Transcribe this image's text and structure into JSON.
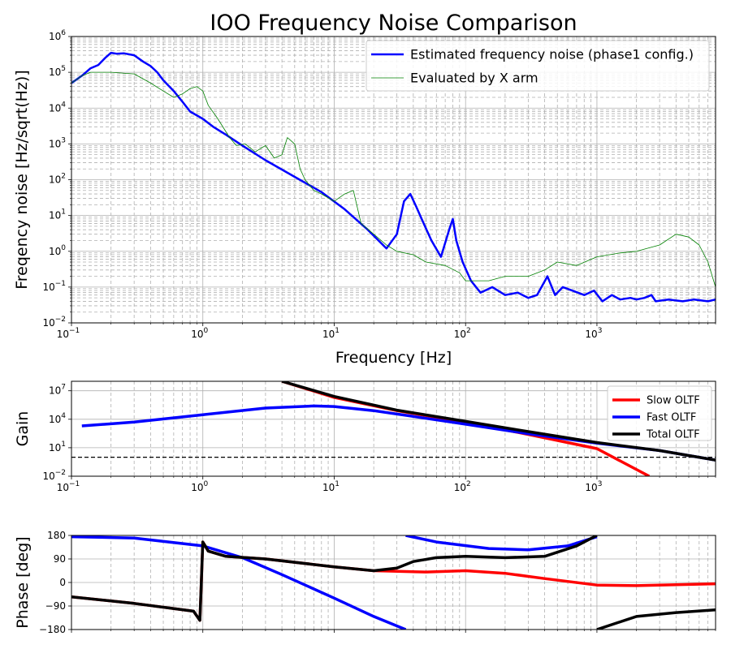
{
  "chart_data": [
    {
      "type": "line",
      "title": "IOO Frequency Noise Comparison",
      "xlabel": "Frequency [Hz]",
      "ylabel": "Freqency noise [Hz/sqrt(Hz)]",
      "xscale": "log",
      "yscale": "log",
      "xlim": [
        0.1,
        8000
      ],
      "ylim": [
        0.01,
        1000000
      ],
      "xticks": [
        {
          "v": 0.1,
          "m": "10",
          "e": "−1"
        },
        {
          "v": 1,
          "m": "10",
          "e": "0"
        },
        {
          "v": 10,
          "m": "10",
          "e": "1"
        },
        {
          "v": 100,
          "m": "10",
          "e": "2"
        },
        {
          "v": 1000,
          "m": "10",
          "e": "3"
        }
      ],
      "yticks": [
        {
          "v": 0.01,
          "m": "10",
          "e": "−2"
        },
        {
          "v": 0.1,
          "m": "10",
          "e": "−1"
        },
        {
          "v": 1,
          "m": "10",
          "e": "0"
        },
        {
          "v": 10,
          "m": "10",
          "e": "1"
        },
        {
          "v": 100,
          "m": "10",
          "e": "2"
        },
        {
          "v": 1000,
          "m": "10",
          "e": "3"
        },
        {
          "v": 10000,
          "m": "10",
          "e": "4"
        },
        {
          "v": 100000,
          "m": "10",
          "e": "5"
        },
        {
          "v": 1000000,
          "m": "10",
          "e": "6"
        }
      ],
      "grid": true,
      "legend": "top-right",
      "series": [
        {
          "name": "Estimated frequency noise (phase1 config.)",
          "color": "#0000ff",
          "points": [
            [
              0.1,
              50000
            ],
            [
              0.12,
              80000
            ],
            [
              0.14,
              130000
            ],
            [
              0.16,
              160000
            ],
            [
              0.18,
              250000
            ],
            [
              0.2,
              350000
            ],
            [
              0.22,
              330000
            ],
            [
              0.25,
              340000
            ],
            [
              0.3,
              300000
            ],
            [
              0.35,
              200000
            ],
            [
              0.4,
              150000
            ],
            [
              0.45,
              100000
            ],
            [
              0.5,
              60000
            ],
            [
              0.6,
              30000
            ],
            [
              0.7,
              15000
            ],
            [
              0.8,
              8000
            ],
            [
              1,
              5000
            ],
            [
              1.2,
              3000
            ],
            [
              1.5,
              1800
            ],
            [
              2,
              900
            ],
            [
              3,
              350
            ],
            [
              5,
              120
            ],
            [
              8,
              45
            ],
            [
              12,
              15
            ],
            [
              18,
              4
            ],
            [
              25,
              1.2
            ],
            [
              30,
              3
            ],
            [
              34,
              25
            ],
            [
              38,
              40
            ],
            [
              42,
              18
            ],
            [
              48,
              6
            ],
            [
              55,
              2
            ],
            [
              65,
              0.7
            ],
            [
              75,
              4
            ],
            [
              80,
              8
            ],
            [
              85,
              2
            ],
            [
              95,
              0.5
            ],
            [
              110,
              0.15
            ],
            [
              130,
              0.07
            ],
            [
              160,
              0.1
            ],
            [
              200,
              0.06
            ],
            [
              250,
              0.07
            ],
            [
              300,
              0.05
            ],
            [
              350,
              0.06
            ],
            [
              420,
              0.2
            ],
            [
              480,
              0.06
            ],
            [
              550,
              0.1
            ],
            [
              650,
              0.08
            ],
            [
              800,
              0.06
            ],
            [
              950,
              0.08
            ],
            [
              1100,
              0.04
            ],
            [
              1300,
              0.06
            ],
            [
              1500,
              0.045
            ],
            [
              1800,
              0.05
            ],
            [
              2000,
              0.045
            ],
            [
              2300,
              0.05
            ],
            [
              2600,
              0.06
            ],
            [
              2800,
              0.04
            ],
            [
              3500,
              0.045
            ],
            [
              4500,
              0.04
            ],
            [
              5500,
              0.045
            ],
            [
              7000,
              0.04
            ],
            [
              8000,
              0.045
            ]
          ]
        },
        {
          "name": "Evaluated by X arm",
          "color": "#008000",
          "points": [
            [
              0.1,
              50000
            ],
            [
              0.12,
              80000
            ],
            [
              0.14,
              100000
            ],
            [
              0.2,
              100000
            ],
            [
              0.3,
              90000
            ],
            [
              0.4,
              50000
            ],
            [
              0.5,
              30000
            ],
            [
              0.6,
              20000
            ],
            [
              0.7,
              25000
            ],
            [
              0.8,
              35000
            ],
            [
              0.9,
              40000
            ],
            [
              1,
              30000
            ],
            [
              1.1,
              12000
            ],
            [
              1.3,
              5000
            ],
            [
              1.6,
              1500
            ],
            [
              1.8,
              900
            ],
            [
              2.1,
              1000
            ],
            [
              2.5,
              600
            ],
            [
              3,
              900
            ],
            [
              3.5,
              400
            ],
            [
              4,
              500
            ],
            [
              4.4,
              1500
            ],
            [
              5,
              1000
            ],
            [
              5.5,
              200
            ],
            [
              6,
              100
            ],
            [
              7,
              50
            ],
            [
              8,
              40
            ],
            [
              10,
              25
            ],
            [
              12,
              40
            ],
            [
              14,
              50
            ],
            [
              16,
              6
            ],
            [
              20,
              3
            ],
            [
              25,
              1.5
            ],
            [
              30,
              1
            ],
            [
              40,
              0.8
            ],
            [
              50,
              0.5
            ],
            [
              70,
              0.4
            ],
            [
              90,
              0.25
            ],
            [
              100,
              0.15
            ],
            [
              150,
              0.15
            ],
            [
              200,
              0.2
            ],
            [
              300,
              0.2
            ],
            [
              400,
              0.3
            ],
            [
              500,
              0.5
            ],
            [
              700,
              0.4
            ],
            [
              1000,
              0.7
            ],
            [
              1500,
              0.9
            ],
            [
              2000,
              1
            ],
            [
              3000,
              1.5
            ],
            [
              4000,
              3
            ],
            [
              5000,
              2.5
            ],
            [
              6000,
              1.5
            ],
            [
              7000,
              0.5
            ],
            [
              8000,
              0.1
            ]
          ]
        }
      ]
    },
    {
      "type": "line",
      "title": "",
      "ylabel": "Gain",
      "xscale": "log",
      "yscale": "log",
      "xlim": [
        0.1,
        8000
      ],
      "ylim": [
        0.01,
        100000000
      ],
      "xticks": [
        {
          "v": 0.1,
          "m": "10",
          "e": "−1"
        },
        {
          "v": 1,
          "m": "10",
          "e": "0"
        },
        {
          "v": 10,
          "m": "10",
          "e": "1"
        },
        {
          "v": 100,
          "m": "10",
          "e": "2"
        },
        {
          "v": 1000,
          "m": "10",
          "e": "3"
        }
      ],
      "yticks": [
        {
          "v": 0.01,
          "m": "10",
          "e": "−2"
        },
        {
          "v": 10,
          "m": "10",
          "e": "1"
        },
        {
          "v": 10000,
          "m": "10",
          "e": "4"
        },
        {
          "v": 10000000,
          "m": "10",
          "e": "7"
        }
      ],
      "reference_line": 1,
      "grid": true,
      "legend": "top-right",
      "series": [
        {
          "name": "Slow OLTF",
          "color": "#ff0000",
          "points": [
            [
              4,
              100000000
            ],
            [
              10,
              2000000
            ],
            [
              30,
              80000
            ],
            [
              100,
              5000
            ],
            [
              300,
              250
            ],
            [
              1000,
              8
            ],
            [
              2500,
              0.01
            ]
          ]
        },
        {
          "name": "Fast OLTF",
          "color": "#0000ff",
          "points": [
            [
              0.12,
              2000
            ],
            [
              0.3,
              5000
            ],
            [
              1,
              30000
            ],
            [
              3,
              150000
            ],
            [
              7,
              250000
            ],
            [
              10,
              220000
            ],
            [
              20,
              80000
            ],
            [
              40,
              20000
            ],
            [
              100,
              3000
            ],
            [
              300,
              300
            ],
            [
              1000,
              30
            ],
            [
              3000,
              5
            ],
            [
              8000,
              0.5
            ]
          ]
        },
        {
          "name": "Total OLTF",
          "color": "#000000",
          "points": [
            [
              4,
              100000000
            ],
            [
              10,
              2500000
            ],
            [
              30,
              90000
            ],
            [
              100,
              6000
            ],
            [
              300,
              500
            ],
            [
              1000,
              35
            ],
            [
              3000,
              5
            ],
            [
              8000,
              0.5
            ]
          ]
        }
      ]
    },
    {
      "type": "line",
      "title": "",
      "ylabel": "Phase [deg]",
      "xscale": "log",
      "xlim": [
        0.1,
        8000
      ],
      "ylim": [
        -180,
        180
      ],
      "yticks": [
        {
          "v": 180,
          "label": "180"
        },
        {
          "v": 90,
          "label": "90"
        },
        {
          "v": 0,
          "label": "0"
        },
        {
          "v": -90,
          "label": "−90"
        },
        {
          "v": -180,
          "label": "−180"
        }
      ],
      "grid": true,
      "series": [
        {
          "name": "",
          "color": "#ff0000",
          "points": [
            [
              0.1,
              -55
            ],
            [
              0.3,
              -80
            ],
            [
              0.85,
              -110
            ],
            [
              0.95,
              -145
            ],
            [
              1.0,
              155
            ],
            [
              1.1,
              120
            ],
            [
              1.5,
              100
            ],
            [
              3,
              90
            ],
            [
              10,
              60
            ],
            [
              20,
              45
            ],
            [
              50,
              40
            ],
            [
              100,
              45
            ],
            [
              200,
              35
            ],
            [
              400,
              15
            ],
            [
              1000,
              -10
            ],
            [
              2000,
              -12
            ],
            [
              8000,
              -5
            ]
          ]
        },
        {
          "name": "",
          "color": "#0000ff",
          "points": [
            [
              0.1,
              175
            ],
            [
              0.3,
              170
            ],
            [
              1,
              140
            ],
            [
              2,
              95
            ],
            [
              4,
              30
            ],
            [
              10,
              -60
            ],
            [
              20,
              -130
            ],
            [
              35,
              -180
            ],
            [
              null,
              null
            ],
            [
              35,
              180
            ],
            [
              60,
              155
            ],
            [
              150,
              130
            ],
            [
              300,
              125
            ],
            [
              600,
              140
            ],
            [
              1000,
              175
            ]
          ]
        },
        {
          "name": "",
          "color": "#000000",
          "points": [
            [
              0.1,
              -55
            ],
            [
              0.3,
              -80
            ],
            [
              0.85,
              -110
            ],
            [
              0.95,
              -145
            ],
            [
              1.0,
              155
            ],
            [
              1.1,
              120
            ],
            [
              1.5,
              100
            ],
            [
              3,
              90
            ],
            [
              10,
              60
            ],
            [
              20,
              45
            ],
            [
              30,
              55
            ],
            [
              40,
              80
            ],
            [
              60,
              95
            ],
            [
              100,
              100
            ],
            [
              200,
              95
            ],
            [
              400,
              100
            ],
            [
              700,
              140
            ],
            [
              1000,
              180
            ],
            [
              null,
              null
            ],
            [
              1000,
              -180
            ],
            [
              2000,
              -130
            ],
            [
              4000,
              -115
            ],
            [
              8000,
              -105
            ]
          ]
        }
      ]
    }
  ]
}
